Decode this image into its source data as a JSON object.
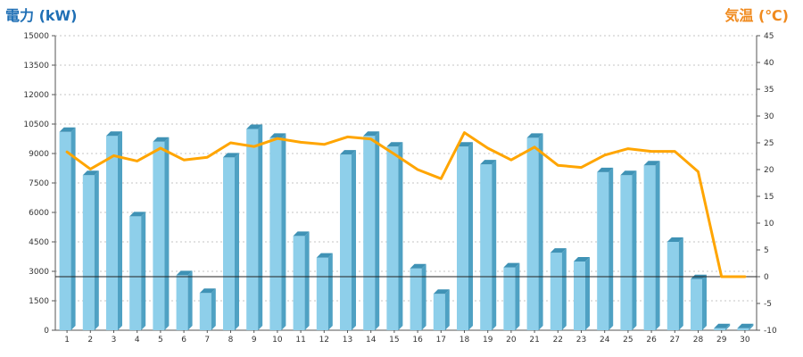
{
  "colors": {
    "bar_front": "#8ECFEA",
    "bar_side": "#4FA1C3",
    "bar_top": "#3F92B5",
    "line": "#FFA500",
    "left_title": "#1F6FB5",
    "right_title": "#F08A1E"
  },
  "chart_data": {
    "type": "bar",
    "left_axis_title": "電力 (kW)",
    "right_axis_title": "気温 (℃)",
    "categories": [
      "1",
      "2",
      "3",
      "4",
      "5",
      "6",
      "7",
      "8",
      "9",
      "10",
      "11",
      "12",
      "13",
      "14",
      "15",
      "16",
      "17",
      "18",
      "19",
      "20",
      "21",
      "22",
      "23",
      "24",
      "25",
      "26",
      "27",
      "28",
      "29",
      "30"
    ],
    "left_ylim": [
      0,
      15000
    ],
    "left_ticks": [
      0,
      1500,
      3000,
      4500,
      6000,
      7500,
      9000,
      10500,
      12000,
      13500,
      15000
    ],
    "right_ylim": [
      -10,
      45
    ],
    "right_ticks": [
      -10,
      -5,
      0,
      5,
      10,
      15,
      20,
      25,
      30,
      35,
      40,
      45
    ],
    "grid": true,
    "reference_line": {
      "axis": "right",
      "value": 0
    },
    "series": [
      {
        "type": "bar",
        "axis": "left",
        "values": [
          10100,
          7900,
          9900,
          5800,
          9600,
          2800,
          1900,
          8800,
          10250,
          9800,
          4800,
          3700,
          8950,
          9900,
          9350,
          3150,
          1850,
          9350,
          8450,
          3200,
          9800,
          3950,
          3500,
          8050,
          7900,
          8400,
          4500,
          2600,
          100,
          100
        ]
      },
      {
        "type": "line",
        "axis": "right",
        "values": [
          23.3,
          20.1,
          22.6,
          21.6,
          24.0,
          21.8,
          22.3,
          25.0,
          24.3,
          25.8,
          25.1,
          24.7,
          26.1,
          25.7,
          22.9,
          20.0,
          18.3,
          26.9,
          24.0,
          21.8,
          24.2,
          20.8,
          20.4,
          22.7,
          23.9,
          23.4,
          23.4,
          19.6,
          0,
          0
        ]
      }
    ]
  }
}
